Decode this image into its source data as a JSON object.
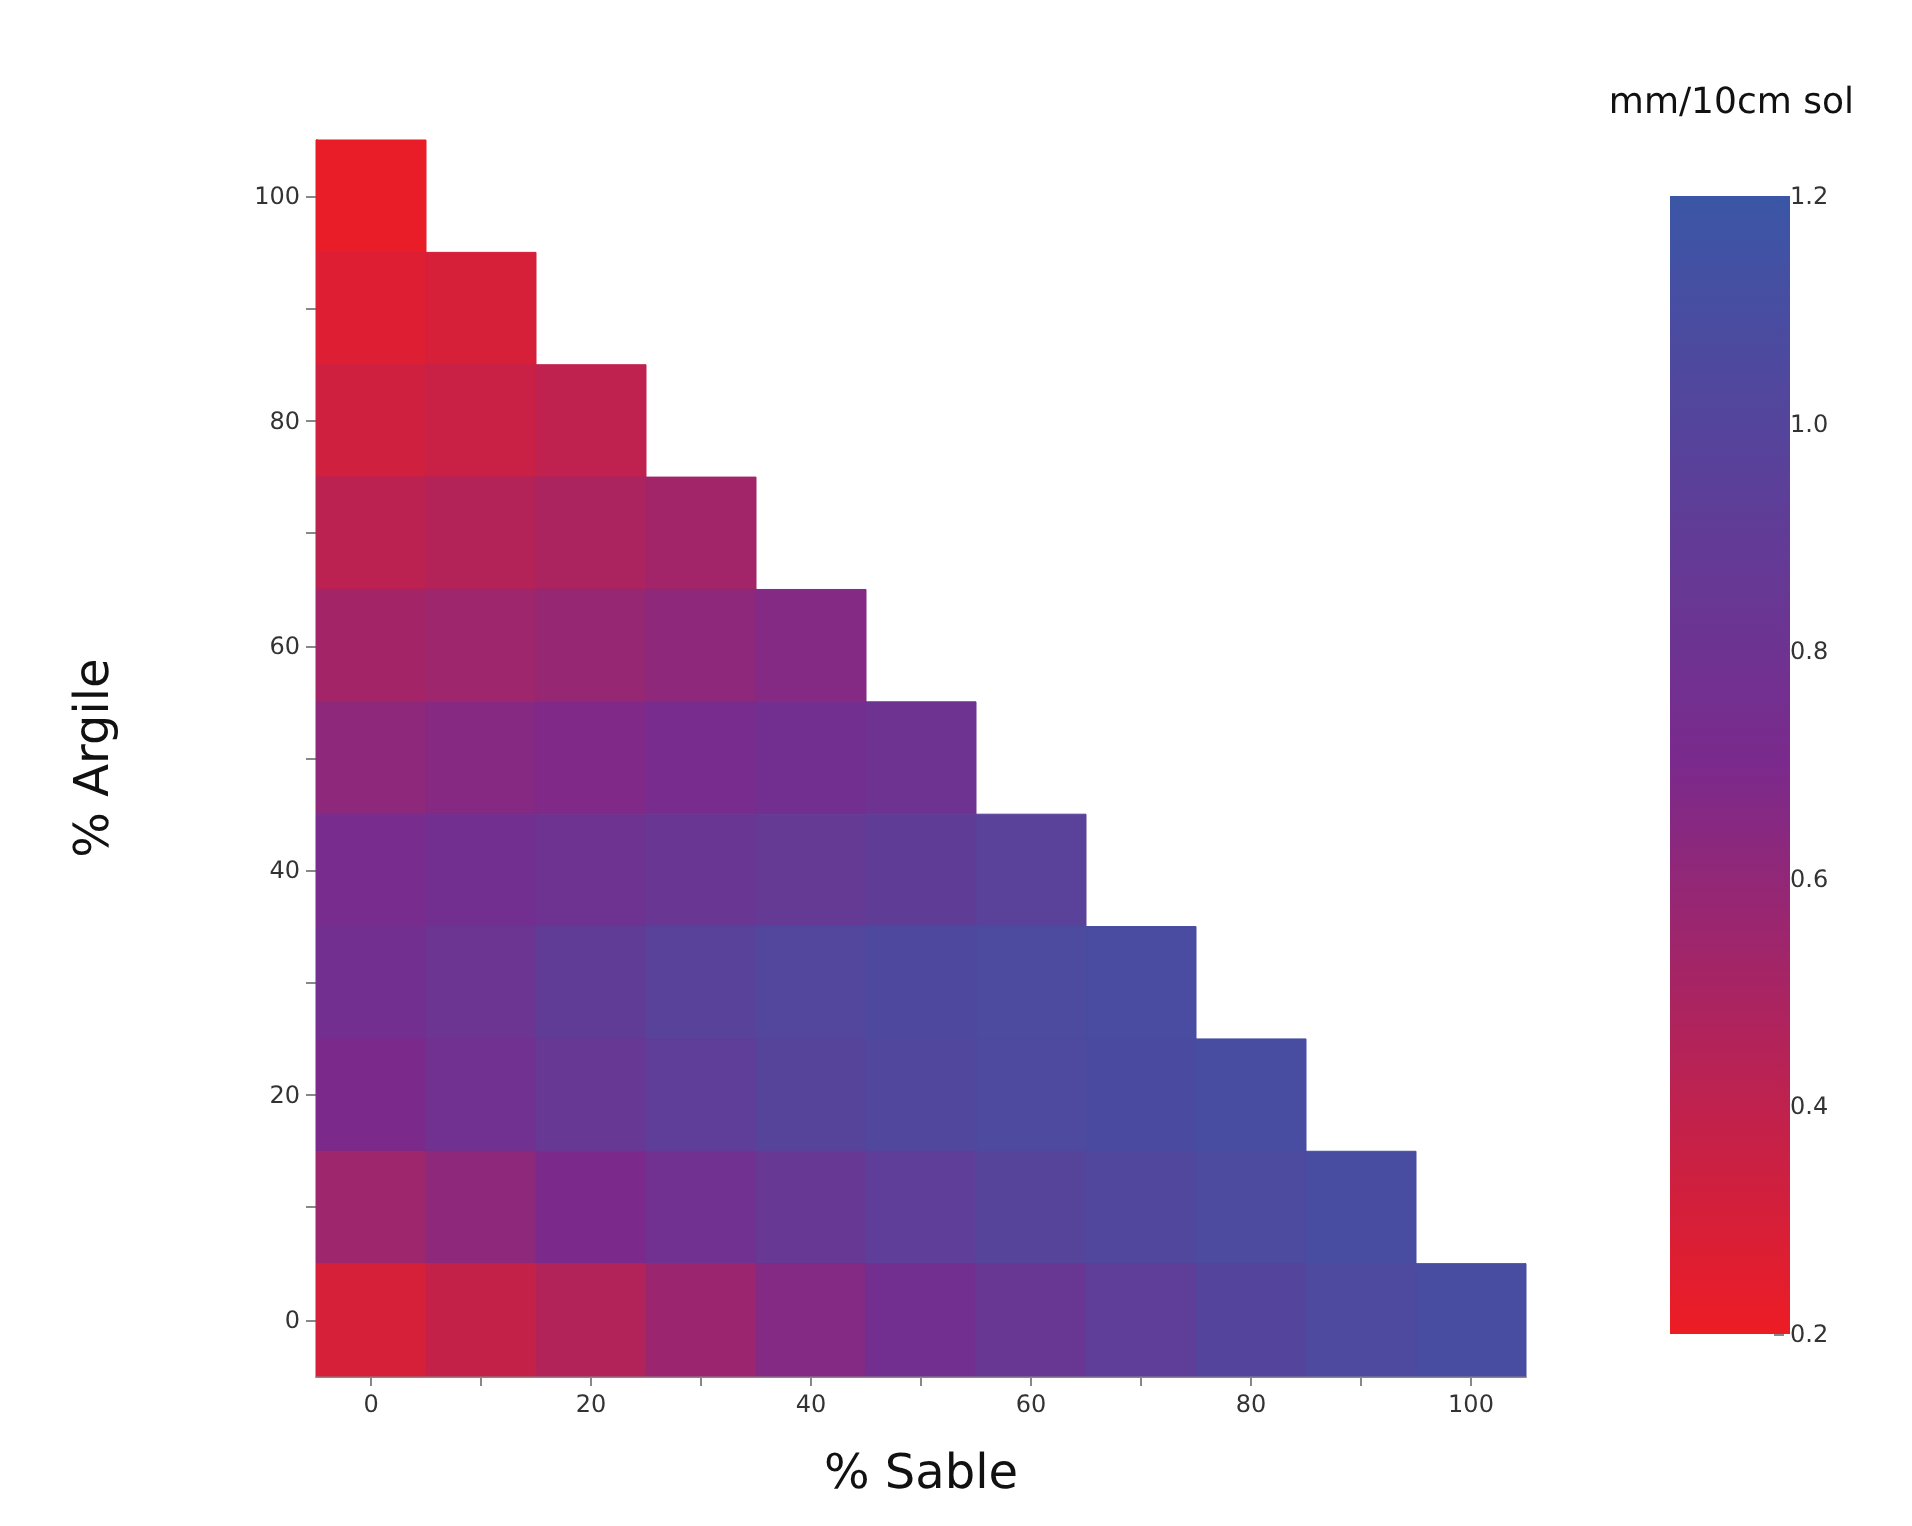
{
  "chart_data": {
    "type": "heatmap",
    "xlabel": "% Sable",
    "ylabel": "% Argile",
    "clabel": "mm/10cm sol",
    "categories": [
      "0",
      null,
      "20",
      null,
      "40",
      null,
      "60",
      null,
      "80",
      null,
      "100"
    ],
    "y_categories": [
      "100",
      null,
      "80",
      null,
      "60",
      null,
      "40",
      null,
      "20",
      null,
      "0"
    ],
    "colors": [
      "#ed1c24",
      "#7b2a8c",
      "#3b56a6"
    ],
    "clim": [
      0.2,
      1.2
    ],
    "cticks": [
      0.2,
      0.4,
      0.6,
      0.8,
      {
        "value": 1,
        "label": "1.0"
      },
      1.2
    ],
    "cells": [
      [
        0.22,
        null,
        null,
        null,
        null,
        null,
        null,
        null,
        null,
        null,
        null
      ],
      [
        0.27,
        0.3,
        null,
        null,
        null,
        null,
        null,
        null,
        null,
        null,
        null
      ],
      [
        0.33,
        0.36,
        0.4,
        null,
        null,
        null,
        null,
        null,
        null,
        null,
        null
      ],
      [
        0.42,
        0.45,
        0.49,
        0.53,
        null,
        null,
        null,
        null,
        null,
        null,
        null
      ],
      [
        0.52,
        0.55,
        0.58,
        0.62,
        0.66,
        null,
        null,
        null,
        null,
        null,
        null
      ],
      [
        0.62,
        0.65,
        0.68,
        0.72,
        0.76,
        0.8,
        null,
        null,
        null,
        null,
        null
      ],
      [
        0.72,
        0.76,
        0.8,
        0.84,
        0.88,
        0.92,
        0.96,
        null,
        null,
        null,
        null
      ],
      [
        0.76,
        0.82,
        0.9,
        0.97,
        1.02,
        1.05,
        1.07,
        1.09,
        null,
        null,
        null
      ],
      [
        0.7,
        0.78,
        0.86,
        0.93,
        0.99,
        1.03,
        1.06,
        1.08,
        1.1,
        null,
        null
      ],
      [
        0.55,
        0.62,
        0.7,
        0.78,
        0.86,
        0.93,
        0.99,
        1.03,
        1.07,
        1.1,
        null
      ],
      [
        0.3,
        0.38,
        0.46,
        0.56,
        0.66,
        0.76,
        0.85,
        0.93,
        1.0,
        1.06,
        1.1
      ]
    ]
  }
}
